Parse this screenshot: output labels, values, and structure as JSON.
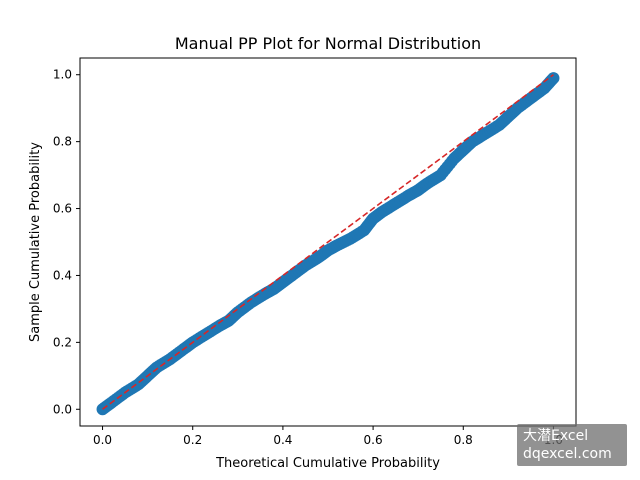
{
  "chart_data": {
    "type": "scatter",
    "title": "Manual PP Plot for Normal Distribution",
    "xlabel": "Theoretical Cumulative Probability",
    "ylabel": "Sample Cumulative Probability",
    "xlim": [
      -0.05,
      1.05
    ],
    "ylim": [
      -0.05,
      1.05
    ],
    "xticks": [
      "0.0",
      "0.2",
      "0.4",
      "0.6",
      "0.8",
      "1.0"
    ],
    "yticks": [
      "0.0",
      "0.2",
      "0.4",
      "0.6",
      "0.8",
      "1.0"
    ],
    "grid": false,
    "marker_color": "#1f77b4",
    "reference_line_color": "#d62728",
    "series": [
      {
        "style": "markers",
        "x": [
          0.0,
          0.02,
          0.05,
          0.08,
          0.1,
          0.12,
          0.15,
          0.18,
          0.2,
          0.23,
          0.26,
          0.28,
          0.3,
          0.33,
          0.36,
          0.38,
          0.4,
          0.42,
          0.45,
          0.48,
          0.5,
          0.52,
          0.55,
          0.58,
          0.6,
          0.62,
          0.65,
          0.68,
          0.7,
          0.72,
          0.75,
          0.78,
          0.8,
          0.82,
          0.85,
          0.88,
          0.9,
          0.92,
          0.95,
          0.98,
          1.0
        ],
        "y": [
          0.0,
          0.02,
          0.05,
          0.075,
          0.1,
          0.125,
          0.15,
          0.18,
          0.2,
          0.225,
          0.25,
          0.265,
          0.29,
          0.32,
          0.345,
          0.36,
          0.38,
          0.4,
          0.43,
          0.455,
          0.475,
          0.49,
          0.51,
          0.535,
          0.57,
          0.59,
          0.615,
          0.64,
          0.655,
          0.675,
          0.7,
          0.75,
          0.775,
          0.8,
          0.825,
          0.85,
          0.875,
          0.9,
          0.93,
          0.96,
          0.99
        ]
      },
      {
        "style": "dashed-line",
        "x": [
          0.0,
          1.0
        ],
        "y": [
          0.0,
          1.0
        ]
      }
    ]
  },
  "watermark": {
    "line1": "大潜Excel",
    "line2": "dqexcel.com"
  }
}
